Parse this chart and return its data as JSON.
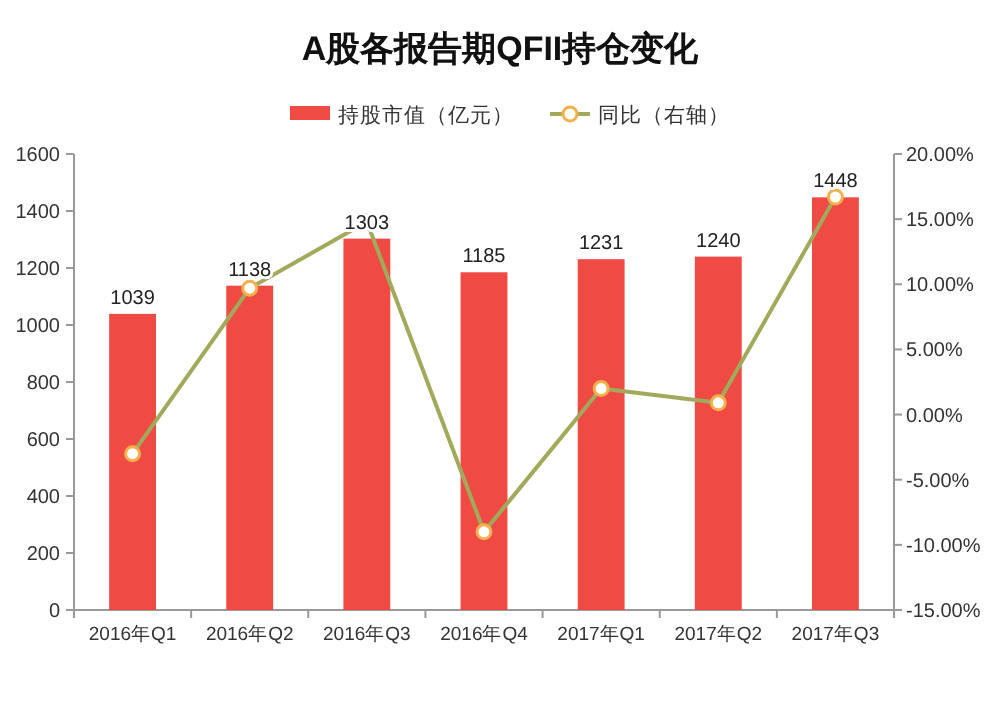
{
  "chart_data": {
    "type": "bar",
    "title": "A股各报告期QFII持仓变化",
    "categories": [
      "2016年Q1",
      "2016年Q2",
      "2016年Q3",
      "2016年Q4",
      "2017年Q1",
      "2017年Q2",
      "2017年Q3"
    ],
    "series": [
      {
        "name": "持股市值（亿元）",
        "color": "#f04a45",
        "values": [
          1039,
          1138,
          1303,
          1185,
          1231,
          1240,
          1448
        ],
        "value_labels": [
          "1039",
          "1138",
          "1303",
          "1185",
          "1231",
          "1240",
          "1448"
        ]
      },
      {
        "name": "同比（右轴）",
        "type": "line",
        "axis": "y2",
        "color": "#a3a95a",
        "marker": "circle",
        "values": [
          -3.0,
          9.7,
          14.8,
          -9.0,
          2.0,
          0.9,
          16.7
        ]
      }
    ],
    "ylim": [
      0,
      1600
    ],
    "yticks": [
      0,
      200,
      400,
      600,
      800,
      1000,
      1200,
      1400,
      1600
    ],
    "y2lim": [
      -15,
      20
    ],
    "y2ticks": [
      {
        "value": -15,
        "label": "-15.00%"
      },
      {
        "value": -10,
        "label": "-10.00%"
      },
      {
        "value": -5,
        "label": "-5.00%"
      },
      {
        "value": 0,
        "label": "0.00%"
      },
      {
        "value": 5,
        "label": "5.00%"
      },
      {
        "value": 10,
        "label": "10.00%"
      },
      {
        "value": 15,
        "label": "15.00%"
      },
      {
        "value": 20,
        "label": "20.00%"
      }
    ],
    "legend": "top",
    "grid": false
  }
}
